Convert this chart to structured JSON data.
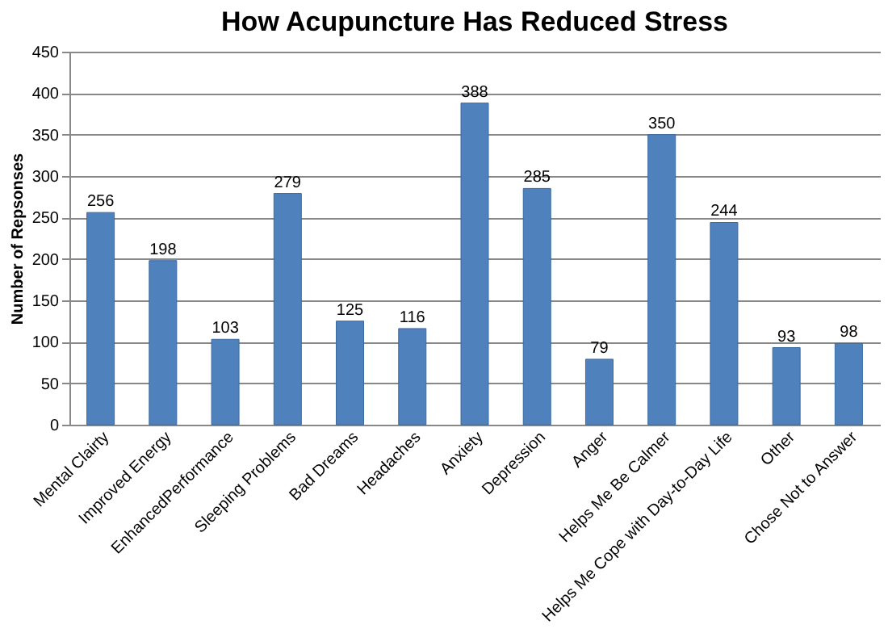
{
  "chart_data": {
    "type": "bar",
    "title": "How Acupuncture Has Reduced Stress",
    "ylabel": "Number of Repsonses",
    "categories": [
      "Mental Clairty",
      "Improved Energy",
      "EnhancedPerformance",
      "Sleeping Problems",
      "Bad Dreams",
      "Headaches",
      "Anxiety",
      "Depression",
      "Anger",
      "Helps Me Be Calmer",
      "Helps Me Cope with Day-to-Day Life",
      "Other",
      "Chose Not to Answer"
    ],
    "values": [
      256,
      198,
      103,
      279,
      125,
      116,
      388,
      285,
      79,
      350,
      244,
      93,
      98
    ],
    "color": "#4f81bd",
    "ylim": [
      0,
      450
    ],
    "yticks": [
      0,
      50,
      100,
      150,
      200,
      250,
      300,
      350,
      400,
      450
    ],
    "grid": "y",
    "data_labels": true
  }
}
